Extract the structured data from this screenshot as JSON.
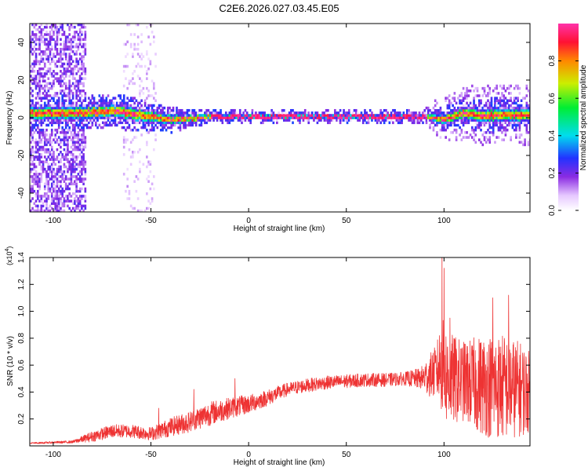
{
  "title": "C2E6.2026.027.03.45.E05",
  "chart_data": [
    {
      "type": "heatmap",
      "title": "C2E6.2026.027.03.45.E05",
      "xlabel": "Height of straight line (km)",
      "ylabel": "Frequency (Hz)",
      "xlim": [
        -112,
        144
      ],
      "ylim": [
        -50,
        50
      ],
      "x_ticks": [
        -100,
        -50,
        0,
        50,
        100
      ],
      "x_tick_labels": [
        "-100",
        "-50",
        "0",
        "50",
        "100"
      ],
      "y_ticks": [
        -40,
        -20,
        0,
        20,
        40
      ],
      "y_tick_labels": [
        "-40",
        "-20",
        "0",
        "20",
        "40"
      ],
      "colorbar": {
        "label": "Normalized spectral amplitude",
        "range": [
          0,
          1
        ],
        "ticks": [
          0.0,
          0.2,
          0.4,
          0.6,
          0.8
        ],
        "tick_labels": [
          "0.0",
          "0.2",
          "0.4",
          "0.6",
          "0.8"
        ]
      },
      "band_center_hz": [
        [
          -88,
          2
        ],
        [
          -80,
          2.5
        ],
        [
          -70,
          3
        ],
        [
          -60,
          1.5
        ],
        [
          -50,
          0
        ],
        [
          -40,
          -1.5
        ],
        [
          -30,
          -1
        ],
        [
          -20,
          0
        ],
        [
          0,
          0
        ],
        [
          50,
          0
        ],
        [
          90,
          0
        ],
        [
          97,
          -1.5
        ],
        [
          100,
          -1
        ],
        [
          110,
          2
        ],
        [
          120,
          0.5
        ],
        [
          130,
          1
        ],
        [
          144,
          1
        ]
      ],
      "band_halfwidth_hz": [
        [
          -88,
          4
        ],
        [
          -60,
          4
        ],
        [
          -40,
          3
        ],
        [
          -20,
          1.5
        ],
        [
          90,
          1.5
        ],
        [
          100,
          3
        ],
        [
          120,
          4
        ],
        [
          144,
          4
        ]
      ],
      "noise_region_km": [
        -112,
        -84
      ],
      "noise_streaks_km": [
        -65,
        -48
      ]
    },
    {
      "type": "line",
      "xlabel": "Height of straight line (km)",
      "ylabel": "SNR (10 * v/v)",
      "y_scale_note": "(x10^4)",
      "xlim": [
        -112,
        144
      ],
      "ylim": [
        0,
        1.4
      ],
      "x_ticks": [
        -100,
        -50,
        0,
        50,
        100
      ],
      "x_tick_labels": [
        "-100",
        "-50",
        "0",
        "50",
        "100"
      ],
      "y_ticks": [
        0.2,
        0.4,
        0.6,
        0.8,
        1.0,
        1.2,
        1.4
      ],
      "y_tick_labels": [
        "0.2",
        "0.4",
        "0.6",
        "0.8",
        "1.0",
        "1.2",
        "1.4"
      ],
      "series": [
        {
          "name": "SNR",
          "color": "#ee3333",
          "envelope_x": [
            -112,
            -90,
            -80,
            -70,
            -60,
            -50,
            -40,
            -30,
            -20,
            -10,
            0,
            10,
            20,
            30,
            40,
            50,
            60,
            70,
            80,
            88,
            92,
            96,
            98,
            100,
            102,
            110,
            120,
            130,
            140,
            144
          ],
          "envelope_mean": [
            0.02,
            0.03,
            0.07,
            0.11,
            0.11,
            0.09,
            0.14,
            0.18,
            0.24,
            0.28,
            0.31,
            0.36,
            0.42,
            0.45,
            0.47,
            0.48,
            0.49,
            0.49,
            0.5,
            0.5,
            0.52,
            0.55,
            0.6,
            0.55,
            0.5,
            0.48,
            0.45,
            0.44,
            0.42,
            0.4
          ],
          "envelope_amp": [
            0.005,
            0.01,
            0.04,
            0.05,
            0.05,
            0.05,
            0.07,
            0.08,
            0.09,
            0.08,
            0.07,
            0.06,
            0.05,
            0.05,
            0.05,
            0.05,
            0.05,
            0.05,
            0.05,
            0.08,
            0.15,
            0.2,
            0.3,
            0.4,
            0.35,
            0.3,
            0.38,
            0.4,
            0.35,
            0.3
          ],
          "spikes": [
            [
              -7,
              0.5
            ],
            [
              -28,
              0.42
            ],
            [
              -46,
              0.28
            ],
            [
              99,
              1.4
            ],
            [
              100,
              1.32
            ],
            [
              103,
              0.95
            ],
            [
              125,
              1.1
            ],
            [
              133,
              1.12
            ]
          ]
        }
      ]
    }
  ]
}
